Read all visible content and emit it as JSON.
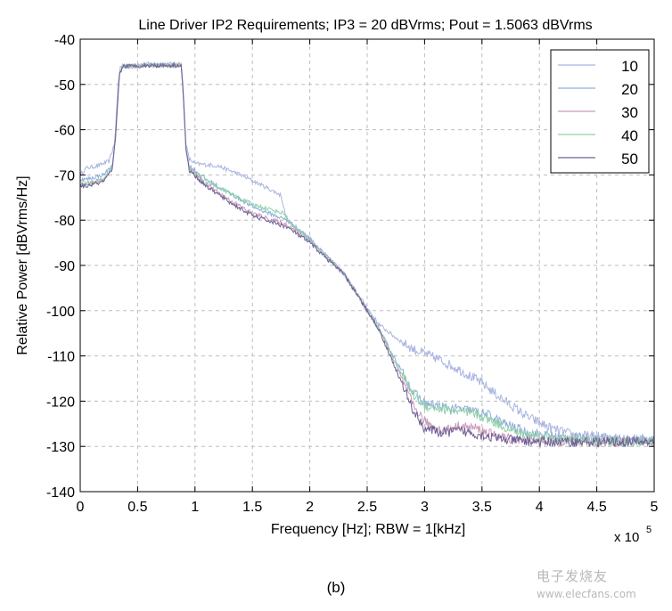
{
  "chart_data": {
    "type": "line",
    "title": "Line Driver IP2 Requirements; IP3 = 20 dBVrms; Pout = 1.5063 dBVrms",
    "xlabel": "Frequency [Hz]; RBW = 1[kHz]",
    "ylabel": "Relative Power [dBVrms/Hz]",
    "x_multiplier_label": "x 10",
    "x_multiplier_exponent": "5",
    "xlim": [
      0,
      5
    ],
    "ylim": [
      -140,
      -40
    ],
    "xticks": [
      "0",
      "0.5",
      "1",
      "1.5",
      "2",
      "2.5",
      "3",
      "3.5",
      "4",
      "4.5",
      "5"
    ],
    "yticks": [
      "-40",
      "-50",
      "-60",
      "-70",
      "-80",
      "-90",
      "-100",
      "-110",
      "-120",
      "-130",
      "-140"
    ],
    "grid": true,
    "legend_position": "top-right",
    "series": [
      {
        "name": "10",
        "color": "#aab4e0",
        "points": [
          [
            0,
            -70
          ],
          [
            0.05,
            -68.5
          ],
          [
            0.15,
            -68
          ],
          [
            0.25,
            -67
          ],
          [
            0.3,
            -63
          ],
          [
            0.33,
            -50
          ],
          [
            0.35,
            -46
          ],
          [
            0.6,
            -45.5
          ],
          [
            0.88,
            -45.5
          ],
          [
            0.9,
            -52
          ],
          [
            0.92,
            -63
          ],
          [
            0.95,
            -66.5
          ],
          [
            1.0,
            -67.5
          ],
          [
            1.2,
            -68
          ],
          [
            1.4,
            -70
          ],
          [
            1.6,
            -72.5
          ],
          [
            1.75,
            -74.5
          ],
          [
            1.78,
            -78
          ],
          [
            1.8,
            -80
          ],
          [
            2.0,
            -84
          ],
          [
            2.3,
            -92
          ],
          [
            2.6,
            -103
          ],
          [
            2.75,
            -106
          ],
          [
            2.9,
            -108.5
          ],
          [
            3.1,
            -110.5
          ],
          [
            3.3,
            -113
          ],
          [
            3.5,
            -116
          ],
          [
            3.7,
            -120
          ],
          [
            3.9,
            -123.5
          ],
          [
            4.1,
            -126
          ],
          [
            4.3,
            -127.5
          ],
          [
            4.6,
            -128
          ],
          [
            5.0,
            -128.5
          ]
        ]
      },
      {
        "name": "20",
        "color": "#8fb0d8",
        "points": [
          [
            0,
            -71
          ],
          [
            0.05,
            -71
          ],
          [
            0.2,
            -70
          ],
          [
            0.28,
            -68
          ],
          [
            0.31,
            -60
          ],
          [
            0.34,
            -48
          ],
          [
            0.37,
            -46
          ],
          [
            0.6,
            -45.7
          ],
          [
            0.88,
            -45.7
          ],
          [
            0.9,
            -53
          ],
          [
            0.92,
            -64
          ],
          [
            0.95,
            -68
          ],
          [
            1.1,
            -71
          ],
          [
            1.3,
            -74
          ],
          [
            1.5,
            -77
          ],
          [
            1.8,
            -80
          ],
          [
            2.0,
            -84
          ],
          [
            2.3,
            -92
          ],
          [
            2.6,
            -104
          ],
          [
            2.75,
            -111
          ],
          [
            2.9,
            -118
          ],
          [
            3.0,
            -120.5
          ],
          [
            3.2,
            -121.5
          ],
          [
            3.4,
            -122
          ],
          [
            3.55,
            -123
          ],
          [
            3.7,
            -125
          ],
          [
            3.9,
            -127
          ],
          [
            4.2,
            -128
          ],
          [
            4.6,
            -128.3
          ],
          [
            5.0,
            -128.5
          ]
        ]
      },
      {
        "name": "30",
        "color": "#c79ab8",
        "points": [
          [
            0,
            -72
          ],
          [
            0.05,
            -72
          ],
          [
            0.2,
            -71
          ],
          [
            0.28,
            -68.5
          ],
          [
            0.31,
            -61
          ],
          [
            0.34,
            -48
          ],
          [
            0.37,
            -46
          ],
          [
            0.6,
            -45.8
          ],
          [
            0.88,
            -45.8
          ],
          [
            0.9,
            -53
          ],
          [
            0.92,
            -64
          ],
          [
            0.95,
            -68.5
          ],
          [
            1.1,
            -72
          ],
          [
            1.3,
            -75.5
          ],
          [
            1.5,
            -78.5
          ],
          [
            1.8,
            -81
          ],
          [
            2.0,
            -84.5
          ],
          [
            2.3,
            -92
          ],
          [
            2.6,
            -104
          ],
          [
            2.75,
            -112
          ],
          [
            2.9,
            -121
          ],
          [
            3.0,
            -124.5
          ],
          [
            3.15,
            -126.5
          ],
          [
            3.3,
            -125.5
          ],
          [
            3.45,
            -126
          ],
          [
            3.6,
            -127.5
          ],
          [
            3.8,
            -128.5
          ],
          [
            4.2,
            -128.8
          ],
          [
            4.6,
            -129
          ],
          [
            5.0,
            -129
          ]
        ]
      },
      {
        "name": "40",
        "color": "#8fd0a8",
        "points": [
          [
            0,
            -72
          ],
          [
            0.05,
            -72
          ],
          [
            0.2,
            -71
          ],
          [
            0.28,
            -68.5
          ],
          [
            0.31,
            -61
          ],
          [
            0.34,
            -48
          ],
          [
            0.37,
            -46
          ],
          [
            0.6,
            -45.8
          ],
          [
            0.88,
            -45.8
          ],
          [
            0.9,
            -53
          ],
          [
            0.92,
            -64
          ],
          [
            0.95,
            -68.5
          ],
          [
            1.1,
            -71.5
          ],
          [
            1.3,
            -74
          ],
          [
            1.5,
            -76.5
          ],
          [
            1.78,
            -78.5
          ],
          [
            1.82,
            -80.5
          ],
          [
            2.0,
            -84.5
          ],
          [
            2.3,
            -92
          ],
          [
            2.6,
            -104
          ],
          [
            2.75,
            -111.5
          ],
          [
            2.9,
            -118.5
          ],
          [
            3.0,
            -121
          ],
          [
            3.2,
            -122
          ],
          [
            3.45,
            -123
          ],
          [
            3.6,
            -124.5
          ],
          [
            3.8,
            -127
          ],
          [
            4.2,
            -128.5
          ],
          [
            4.6,
            -129
          ],
          [
            5.0,
            -129
          ]
        ]
      },
      {
        "name": "50",
        "color": "#6f5f96",
        "points": [
          [
            0,
            -72.5
          ],
          [
            0.05,
            -72.5
          ],
          [
            0.2,
            -71.5
          ],
          [
            0.28,
            -69
          ],
          [
            0.31,
            -61
          ],
          [
            0.34,
            -48
          ],
          [
            0.37,
            -46
          ],
          [
            0.6,
            -45.8
          ],
          [
            0.88,
            -45.8
          ],
          [
            0.9,
            -53
          ],
          [
            0.92,
            -64
          ],
          [
            0.95,
            -69
          ],
          [
            1.1,
            -72.5
          ],
          [
            1.3,
            -76
          ],
          [
            1.5,
            -79
          ],
          [
            1.8,
            -81.5
          ],
          [
            2.0,
            -85
          ],
          [
            2.3,
            -92
          ],
          [
            2.6,
            -104
          ],
          [
            2.75,
            -113
          ],
          [
            2.9,
            -122
          ],
          [
            3.0,
            -126
          ],
          [
            3.15,
            -127
          ],
          [
            3.3,
            -126.5
          ],
          [
            3.5,
            -127.5
          ],
          [
            3.7,
            -128.5
          ],
          [
            4.0,
            -129
          ],
          [
            4.5,
            -129
          ],
          [
            5.0,
            -129
          ]
        ]
      }
    ]
  },
  "caption": "(b)",
  "watermark": {
    "cn": "电子发烧友",
    "en": "www.elecfans.com"
  }
}
